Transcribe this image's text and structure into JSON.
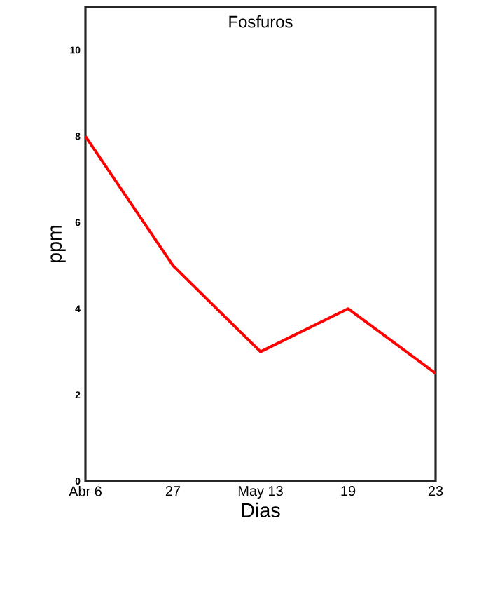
{
  "chart_data": {
    "type": "line",
    "title": "Fosfuros",
    "xlabel": "Dias",
    "ylabel": "ppm",
    "categories": [
      "Abr 6",
      "27",
      "May 13",
      "19",
      "23"
    ],
    "series": [
      {
        "color": "#ff0000",
        "values": [
          8,
          5,
          3,
          4,
          2.5
        ]
      }
    ],
    "ylim": [
      0,
      11
    ],
    "yticks": [
      0,
      2,
      4,
      6,
      8,
      10
    ],
    "grid": false,
    "marker": "none",
    "line_style": "solid"
  }
}
